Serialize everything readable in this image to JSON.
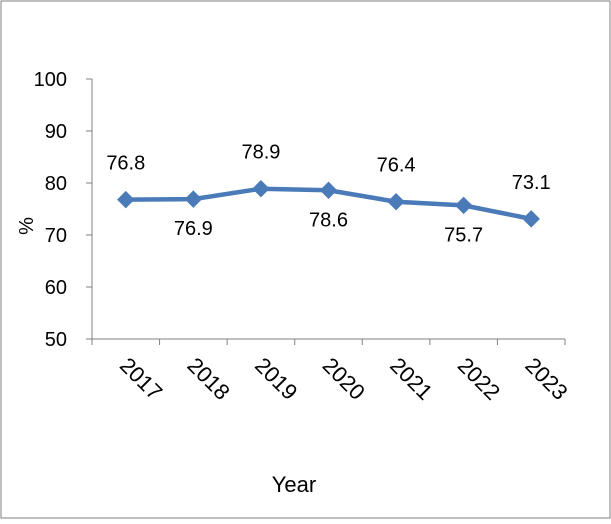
{
  "chart_data": {
    "type": "line",
    "title": "",
    "xlabel": "Year",
    "ylabel": "%",
    "categories": [
      "2017",
      "2018",
      "2019",
      "2020",
      "2021",
      "2022",
      "2023"
    ],
    "series": [
      {
        "values": [
          76.8,
          76.9,
          78.9,
          78.6,
          76.4,
          75.7,
          73.1
        ],
        "data_labels": [
          "76.8",
          "76.9",
          "78.9",
          "78.6",
          "76.4",
          "75.7",
          "73.1"
        ],
        "label_positions": [
          "above",
          "below",
          "above",
          "below",
          "above",
          "below",
          "above"
        ],
        "color": "#4a7ab8",
        "marker": "diamond"
      }
    ],
    "ylim": [
      50,
      100
    ],
    "yticks": [
      50,
      60,
      70,
      80,
      90,
      100
    ],
    "grid": false,
    "legend": "none"
  },
  "colors": {
    "series": "#4a7ab8",
    "axis": "#808080",
    "frame": "#7f7f7f"
  }
}
